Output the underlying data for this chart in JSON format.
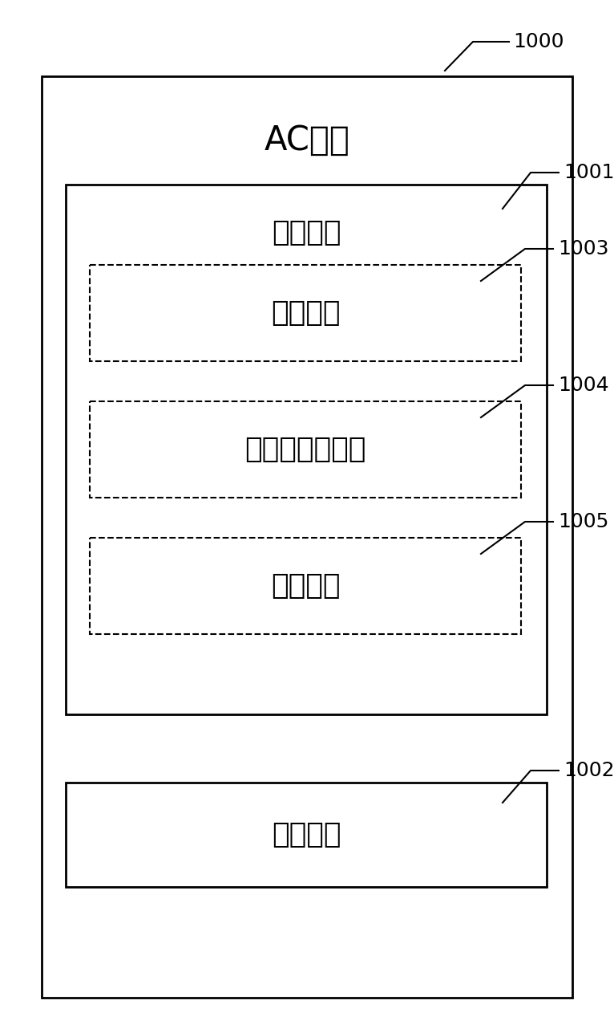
{
  "title": "AC设备",
  "label_1000": "1000",
  "label_1001": "1001",
  "label_1002": "1002",
  "label_1003": "1003",
  "label_1004": "1004",
  "label_1005": "1005",
  "box_1001_label": "预测单元",
  "box_1002_label": "输出单元",
  "box_1003_label": "计算单元",
  "box_1004_label": "修正值获得单元",
  "box_1005_label": "修正单元",
  "bg_color": "#ffffff",
  "box_color": "#ffffff",
  "line_color": "#000000",
  "text_color": "#000000",
  "font_size_title": 30,
  "font_size_label": 26,
  "font_size_ref": 18
}
